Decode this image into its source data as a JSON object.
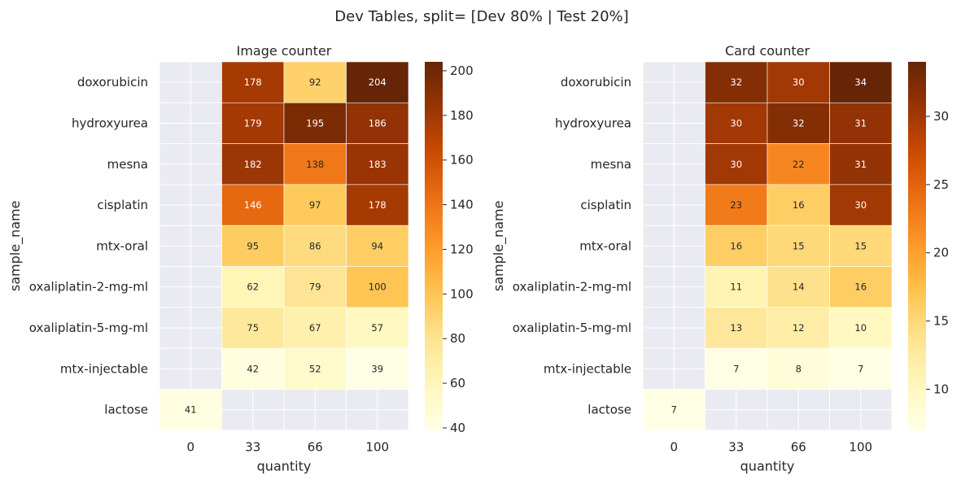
{
  "suptitle": "Dev Tables, split= [Dev 80% | Test 20%]",
  "chart_data": [
    {
      "type": "heatmap",
      "title": "Image counter",
      "xlabel": "quantity",
      "ylabel": "sample_name",
      "x": [
        "0",
        "33",
        "66",
        "100"
      ],
      "y": [
        "doxorubicin",
        "hydroxyurea",
        "mesna",
        "cisplatin",
        "mtx-oral",
        "oxaliplatin-2-mg-ml",
        "oxaliplatin-5-mg-ml",
        "mtx-injectable",
        "lactose"
      ],
      "values": [
        [
          null,
          178,
          92,
          204
        ],
        [
          null,
          179,
          195,
          186
        ],
        [
          null,
          182,
          138,
          183
        ],
        [
          null,
          146,
          97,
          178
        ],
        [
          null,
          95,
          86,
          94
        ],
        [
          null,
          62,
          79,
          100
        ],
        [
          null,
          75,
          67,
          57
        ],
        [
          null,
          42,
          52,
          39
        ],
        [
          41,
          null,
          null,
          null
        ]
      ],
      "colorbar": {
        "min": 39,
        "max": 204,
        "ticks": [
          40,
          60,
          80,
          100,
          120,
          140,
          160,
          180,
          200
        ]
      }
    },
    {
      "type": "heatmap",
      "title": "Card counter",
      "xlabel": "quantity",
      "ylabel": "sample_name",
      "x": [
        "0",
        "33",
        "66",
        "100"
      ],
      "y": [
        "doxorubicin",
        "hydroxyurea",
        "mesna",
        "cisplatin",
        "mtx-oral",
        "oxaliplatin-2-mg-ml",
        "oxaliplatin-5-mg-ml",
        "mtx-injectable",
        "lactose"
      ],
      "values": [
        [
          null,
          32,
          30,
          34
        ],
        [
          null,
          30,
          32,
          31
        ],
        [
          null,
          30,
          22,
          31
        ],
        [
          null,
          23,
          16,
          30
        ],
        [
          null,
          16,
          15,
          15
        ],
        [
          null,
          11,
          14,
          16
        ],
        [
          null,
          13,
          12,
          10
        ],
        [
          null,
          7,
          8,
          7
        ],
        [
          7,
          null,
          null,
          null
        ]
      ],
      "colorbar": {
        "min": 7,
        "max": 34,
        "ticks": [
          10,
          15,
          20,
          25,
          30
        ]
      }
    }
  ],
  "colors": {
    "background_missing": "#eaeaf2",
    "grid": "#ffffff",
    "text_dark": "#262626",
    "colormap": [
      "#ffffe5",
      "#fff7bc",
      "#fee391",
      "#fec44f",
      "#fe9929",
      "#ec7014",
      "#cc4c02",
      "#993404",
      "#662506"
    ]
  }
}
